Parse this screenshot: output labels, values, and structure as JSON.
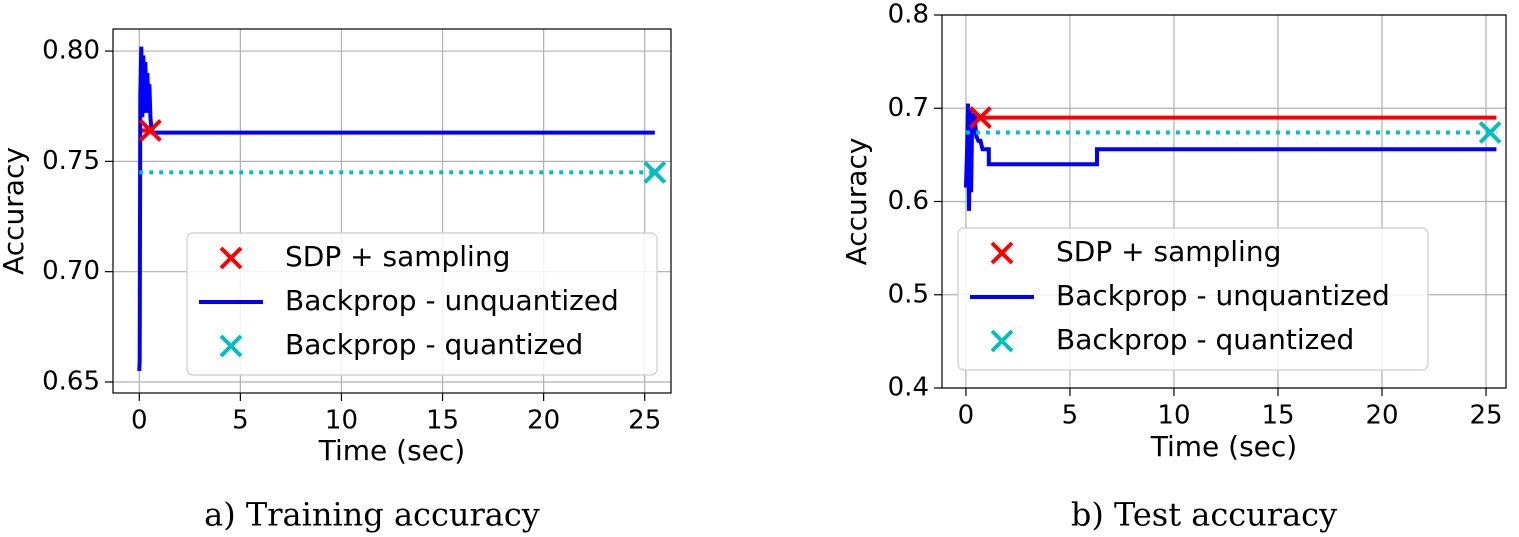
{
  "chart_data": [
    {
      "type": "line",
      "caption": "a) Training accuracy",
      "xlabel": "Time (sec)",
      "ylabel": "Accuracy",
      "xlim": [
        -1.3,
        26.3
      ],
      "ylim": [
        0.645,
        0.81
      ],
      "xticks": [
        0,
        5,
        10,
        15,
        20,
        25
      ],
      "yticks": [
        {
          "value": 0.65,
          "label": "0.65"
        },
        {
          "value": 0.7,
          "label": "0.70"
        },
        {
          "value": 0.75,
          "label": "0.75"
        },
        {
          "value": 0.8,
          "label": "0.80"
        }
      ],
      "grid": true,
      "legend": "lower right",
      "series": [
        {
          "name": "SDP + sampling",
          "color": "#ff0000",
          "linestyle": "solid",
          "legend_symbol": "x",
          "x": [
            0,
            0.6
          ],
          "values": [
            0.764,
            0.764
          ],
          "marker": {
            "x": 0.55,
            "y": 0.764
          }
        },
        {
          "name": "Backprop - unquantized",
          "color": "#0000ff",
          "linestyle": "solid",
          "legend_symbol": "line",
          "x": [
            0,
            0.02,
            0.05,
            0.1,
            0.15,
            0.2,
            0.25,
            0.3,
            0.35,
            0.4,
            0.45,
            0.5,
            0.55,
            0.6,
            0.65,
            25.5
          ],
          "values": [
            0.655,
            0.66,
            0.78,
            0.802,
            0.77,
            0.798,
            0.775,
            0.795,
            0.772,
            0.79,
            0.775,
            0.785,
            0.77,
            0.765,
            0.763,
            0.763
          ]
        },
        {
          "name": "Backprop - quantized",
          "color": "#00bfbf",
          "linestyle": "dotted",
          "legend_symbol": "x",
          "x": [
            0,
            25.5
          ],
          "values": [
            0.745,
            0.745
          ],
          "marker": {
            "x": 25.5,
            "y": 0.745
          }
        }
      ]
    },
    {
      "type": "line",
      "caption": "b) Test accuracy",
      "xlabel": "Time (sec)",
      "ylabel": "Accuracy",
      "xlim": [
        -1.15,
        25.96
      ],
      "ylim": [
        0.4,
        0.8
      ],
      "xticks": [
        0,
        5,
        10,
        15,
        20,
        25
      ],
      "yticks": [
        0.4,
        0.5,
        0.6,
        0.7,
        0.8
      ],
      "grid": true,
      "legend": "lower left",
      "series": [
        {
          "name": "SDP + sampling",
          "color": "#ff0000",
          "linestyle": "solid",
          "legend_symbol": "x",
          "x": [
            0,
            25.5
          ],
          "values": [
            0.69,
            0.69
          ],
          "marker": {
            "x": 0.7,
            "y": 0.69
          }
        },
        {
          "name": "Backprop - unquantized",
          "color": "#0000ff",
          "linestyle": "solid",
          "legend_symbol": "line",
          "x": [
            0,
            0.05,
            0.1,
            0.15,
            0.2,
            0.25,
            0.3,
            0.35,
            0.4,
            0.5,
            0.6,
            0.7,
            0.8,
            1.1,
            1.1,
            6.3,
            6.3,
            25.5
          ],
          "values": [
            0.615,
            0.65,
            0.705,
            0.59,
            0.7,
            0.61,
            0.69,
            0.68,
            0.695,
            0.67,
            0.665,
            0.665,
            0.656,
            0.656,
            0.64,
            0.64,
            0.656,
            0.656
          ]
        },
        {
          "name": "Backprop - quantized",
          "color": "#00bfbf",
          "linestyle": "dotted",
          "legend_symbol": "x",
          "x": [
            0,
            25.5
          ],
          "values": [
            0.674,
            0.674
          ],
          "marker": {
            "x": 25.2,
            "y": 0.674
          }
        }
      ]
    }
  ]
}
